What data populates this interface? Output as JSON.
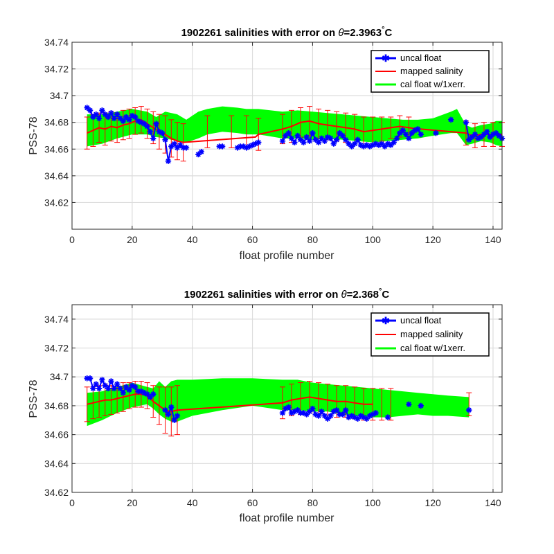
{
  "colors": {
    "uncal": "#0000ff",
    "mapped": "#ff0000",
    "errorbar": "#ff0000",
    "calband": "#00ff00",
    "grid": "#dcdcdc",
    "axes": "#262626"
  },
  "chart_data": [
    {
      "type": "line",
      "title_prefix": "1902261 salinities with error on ",
      "title_theta": "θ",
      "title_value": "=2.3963",
      "title_deg": "°",
      "title_unit": "C",
      "xlabel": "float profile number",
      "ylabel": "PSS-78",
      "xlim": [
        0,
        143
      ],
      "ylim": [
        34.6,
        34.74
      ],
      "xticks": [
        0,
        20,
        40,
        60,
        80,
        100,
        120,
        140
      ],
      "xtick_labels": [
        "0",
        "20",
        "40",
        "60",
        "80",
        "100",
        "120",
        "140"
      ],
      "yticks": [
        34.62,
        34.64,
        34.66,
        34.68,
        34.7,
        34.72,
        34.74
      ],
      "ytick_labels": [
        "34.62",
        "34.64",
        "34.66",
        "34.68",
        "34.7",
        "34.72",
        "34.74"
      ],
      "grid": true,
      "legend_position": "top-right",
      "legend": [
        "uncal float",
        "mapped salinity",
        "cal float w/1xerr."
      ],
      "series": [
        {
          "name": "uncal float",
          "x": [
            5,
            6,
            7,
            8,
            9,
            10,
            11,
            12,
            13,
            14,
            15,
            16,
            17,
            18,
            19,
            20,
            21,
            22,
            23,
            24,
            25,
            26,
            27,
            28,
            29,
            30,
            31,
            32,
            33,
            34,
            35,
            36,
            37,
            38,
            42,
            43,
            49,
            50,
            55,
            56,
            57,
            58,
            59,
            60,
            61,
            62,
            70,
            71,
            72,
            73,
            74,
            75,
            76,
            77,
            78,
            79,
            80,
            81,
            82,
            83,
            84,
            85,
            86,
            87,
            88,
            89,
            90,
            91,
            92,
            93,
            94,
            95,
            96,
            97,
            98,
            99,
            100,
            101,
            102,
            103,
            104,
            105,
            106,
            107,
            108,
            109,
            110,
            111,
            112,
            113,
            114,
            115,
            116,
            121,
            126,
            131,
            132,
            133,
            134,
            135,
            136,
            137,
            138,
            139,
            140,
            141,
            142,
            143
          ],
          "y": [
            34.691,
            34.689,
            34.684,
            34.686,
            34.683,
            34.689,
            34.686,
            34.684,
            34.687,
            34.683,
            34.686,
            34.683,
            34.681,
            34.684,
            34.682,
            34.685,
            34.684,
            34.681,
            34.68,
            34.679,
            34.677,
            34.673,
            34.668,
            34.679,
            34.673,
            34.672,
            34.667,
            34.651,
            34.662,
            34.664,
            34.661,
            34.663,
            34.661,
            34.661,
            34.656,
            34.658,
            34.662,
            34.662,
            34.661,
            34.662,
            34.662,
            34.661,
            34.662,
            34.663,
            34.664,
            34.665,
            34.666,
            34.67,
            34.672,
            34.668,
            34.665,
            34.67,
            34.667,
            34.665,
            34.669,
            34.666,
            34.672,
            34.667,
            34.665,
            34.668,
            34.666,
            34.669,
            34.668,
            34.664,
            34.667,
            34.672,
            34.67,
            34.667,
            34.664,
            34.662,
            34.664,
            34.667,
            34.663,
            34.662,
            34.663,
            34.662,
            34.663,
            34.664,
            34.663,
            34.664,
            34.662,
            34.664,
            34.663,
            34.665,
            34.668,
            34.672,
            34.674,
            34.671,
            34.668,
            34.672,
            34.674,
            34.675,
            34.671,
            34.672,
            34.682,
            34.68,
            34.667,
            34.669,
            34.671,
            34.668,
            34.669,
            34.671,
            34.673,
            34.669,
            34.671,
            34.672,
            34.67,
            34.668
          ]
        },
        {
          "name": "mapped salinity",
          "x": [
            5,
            7,
            9,
            11,
            13,
            15,
            17,
            19,
            21,
            23,
            25,
            27,
            29,
            31,
            33,
            35,
            37,
            61,
            62,
            70,
            73,
            76,
            79,
            82,
            85,
            88,
            91,
            94,
            97,
            100,
            103,
            106,
            109,
            112,
            115,
            116,
            131,
            133,
            136,
            139,
            142,
            143
          ],
          "y": [
            34.672,
            34.674,
            34.676,
            34.675,
            34.677,
            34.676,
            34.678,
            34.679,
            34.681,
            34.682,
            34.679,
            34.676,
            34.673,
            34.671,
            34.668,
            34.666,
            34.665,
            34.669,
            34.671,
            34.675,
            34.677,
            34.68,
            34.681,
            34.679,
            34.678,
            34.677,
            34.676,
            34.675,
            34.673,
            34.674,
            34.675,
            34.676,
            34.677,
            34.676,
            34.675,
            34.675,
            34.672,
            34.67,
            34.671,
            34.671,
            34.671,
            34.671
          ]
        }
      ],
      "errorbars": {
        "x": [
          5,
          7,
          9,
          11,
          13,
          15,
          17,
          19,
          21,
          23,
          25,
          27,
          29,
          31,
          33,
          35,
          37,
          45,
          53,
          58,
          62,
          70,
          73,
          76,
          79,
          82,
          85,
          88,
          91,
          94,
          97,
          100,
          103,
          106,
          109,
          112,
          131,
          134,
          137,
          140,
          143
        ],
        "center": [
          34.672,
          34.674,
          34.676,
          34.675,
          34.677,
          34.676,
          34.678,
          34.679,
          34.681,
          34.682,
          34.679,
          34.676,
          34.673,
          34.671,
          34.668,
          34.666,
          34.665,
          34.673,
          34.673,
          34.673,
          34.671,
          34.675,
          34.677,
          34.68,
          34.681,
          34.679,
          34.678,
          34.677,
          34.676,
          34.675,
          34.673,
          34.674,
          34.675,
          34.676,
          34.677,
          34.676,
          34.672,
          34.67,
          34.671,
          34.671,
          34.671
        ],
        "err": [
          0.012,
          0.012,
          0.011,
          0.012,
          0.011,
          0.011,
          0.011,
          0.011,
          0.01,
          0.01,
          0.011,
          0.012,
          0.013,
          0.014,
          0.014,
          0.014,
          0.014,
          0.012,
          0.012,
          0.012,
          0.012,
          0.011,
          0.012,
          0.011,
          0.011,
          0.011,
          0.011,
          0.011,
          0.011,
          0.011,
          0.011,
          0.01,
          0.009,
          0.008,
          0.008,
          0.008,
          0.009,
          0.009,
          0.009,
          0.009,
          0.009
        ]
      },
      "cal_band": {
        "x": [
          5,
          10,
          15,
          20,
          25,
          28,
          31,
          35,
          38,
          42,
          45,
          50,
          55,
          58,
          62,
          70,
          75,
          80,
          85,
          90,
          95,
          100,
          105,
          110,
          115,
          120,
          126,
          128,
          131,
          133,
          136,
          139,
          141,
          143
        ],
        "lower": [
          34.662,
          34.664,
          34.668,
          34.671,
          34.671,
          34.669,
          34.668,
          34.666,
          34.665,
          34.668,
          34.671,
          34.673,
          34.672,
          34.671,
          34.671,
          34.668,
          34.668,
          34.667,
          34.668,
          34.667,
          34.666,
          34.665,
          34.666,
          34.667,
          34.668,
          34.67,
          34.672,
          34.672,
          34.663,
          34.664,
          34.666,
          34.665,
          34.663,
          34.662
        ],
        "upper": [
          34.686,
          34.686,
          34.688,
          34.69,
          34.688,
          34.684,
          34.688,
          34.686,
          34.682,
          34.688,
          34.69,
          34.692,
          34.691,
          34.69,
          34.69,
          34.688,
          34.689,
          34.688,
          34.687,
          34.686,
          34.685,
          34.684,
          34.683,
          34.682,
          34.682,
          34.683,
          34.688,
          34.69,
          34.678,
          34.676,
          34.678,
          34.679,
          34.681,
          34.681
        ]
      }
    },
    {
      "type": "line",
      "title_prefix": "1902261 salinities with error on ",
      "title_theta": "θ",
      "title_value": "=2.368",
      "title_deg": "°",
      "title_unit": "C",
      "xlabel": "float profile number",
      "ylabel": "PSS-78",
      "xlim": [
        0,
        143
      ],
      "ylim": [
        34.62,
        34.75
      ],
      "xticks": [
        0,
        20,
        40,
        60,
        80,
        100,
        120,
        140
      ],
      "xtick_labels": [
        "0",
        "20",
        "40",
        "60",
        "80",
        "100",
        "120",
        "140"
      ],
      "yticks": [
        34.62,
        34.64,
        34.66,
        34.68,
        34.7,
        34.72,
        34.74
      ],
      "ytick_labels": [
        "34.62",
        "34.64",
        "34.66",
        "34.68",
        "34.7",
        "34.72",
        "34.74"
      ],
      "grid": true,
      "legend_position": "top-right",
      "legend": [
        "uncal float",
        "mapped salinity",
        "cal float w/1xerr."
      ],
      "series": [
        {
          "name": "uncal float",
          "x": [
            5,
            6,
            7,
            8,
            9,
            10,
            11,
            12,
            13,
            14,
            15,
            16,
            17,
            18,
            19,
            20,
            21,
            22,
            23,
            24,
            25,
            26,
            27,
            31,
            32,
            33,
            34,
            35,
            70,
            71,
            72,
            73,
            74,
            75,
            76,
            77,
            78,
            79,
            80,
            81,
            82,
            83,
            84,
            85,
            86,
            87,
            88,
            89,
            90,
            91,
            92,
            93,
            94,
            95,
            96,
            97,
            98,
            99,
            100,
            101,
            105,
            112,
            116,
            132
          ],
          "y": [
            34.699,
            34.699,
            34.692,
            34.695,
            34.692,
            34.698,
            34.694,
            34.692,
            34.697,
            34.692,
            34.695,
            34.692,
            34.689,
            34.693,
            34.691,
            34.694,
            34.693,
            34.69,
            34.69,
            34.689,
            34.688,
            34.686,
            34.688,
            34.677,
            34.674,
            34.679,
            34.67,
            34.673,
            34.675,
            34.678,
            34.679,
            34.675,
            34.676,
            34.677,
            34.675,
            34.675,
            34.674,
            34.676,
            34.678,
            34.674,
            34.673,
            34.676,
            34.673,
            34.671,
            34.673,
            34.676,
            34.677,
            34.674,
            34.674,
            34.677,
            34.672,
            34.673,
            34.672,
            34.671,
            34.673,
            34.672,
            34.671,
            34.673,
            34.674,
            34.675,
            34.672,
            34.681,
            34.68,
            34.677
          ]
        },
        {
          "name": "mapped salinity",
          "x": [
            5,
            7,
            9,
            11,
            13,
            15,
            17,
            19,
            21,
            23,
            25,
            27,
            29,
            31,
            33,
            35,
            70,
            73,
            76,
            79,
            82,
            85,
            88,
            91,
            94,
            97,
            100
          ],
          "y": [
            34.681,
            34.682,
            34.683,
            34.684,
            34.684,
            34.685,
            34.686,
            34.687,
            34.688,
            34.688,
            34.687,
            34.683,
            34.68,
            34.677,
            34.676,
            34.677,
            34.682,
            34.684,
            34.685,
            34.686,
            34.685,
            34.684,
            34.683,
            34.683,
            34.682,
            34.681,
            34.681
          ]
        }
      ],
      "errorbars": {
        "x": [
          5,
          7,
          9,
          11,
          13,
          15,
          17,
          19,
          21,
          23,
          25,
          27,
          29,
          31,
          33,
          35,
          70,
          73,
          76,
          79,
          82,
          85,
          88,
          91,
          94,
          97,
          100,
          103,
          106,
          132
        ],
        "center": [
          34.681,
          34.682,
          34.683,
          34.684,
          34.684,
          34.685,
          34.686,
          34.687,
          34.688,
          34.688,
          34.687,
          34.683,
          34.68,
          34.677,
          34.676,
          34.677,
          34.682,
          34.684,
          34.685,
          34.686,
          34.685,
          34.684,
          34.683,
          34.683,
          34.682,
          34.681,
          34.681,
          34.681,
          34.681,
          34.681
        ],
        "err": [
          0.012,
          0.011,
          0.011,
          0.011,
          0.01,
          0.01,
          0.01,
          0.009,
          0.009,
          0.009,
          0.009,
          0.011,
          0.013,
          0.016,
          0.017,
          0.017,
          0.011,
          0.011,
          0.011,
          0.011,
          0.011,
          0.011,
          0.011,
          0.011,
          0.011,
          0.011,
          0.011,
          0.011,
          0.011,
          0.008
        ]
      },
      "cal_band": {
        "x": [
          5,
          10,
          15,
          20,
          25,
          27,
          29,
          31,
          33,
          35,
          40,
          50,
          60,
          70,
          75,
          80,
          85,
          90,
          95,
          100,
          105,
          110,
          115,
          120,
          125,
          132
        ],
        "lower": [
          34.666,
          34.67,
          34.675,
          34.679,
          34.681,
          34.678,
          34.674,
          34.671,
          34.669,
          34.669,
          34.673,
          34.677,
          34.68,
          34.677,
          34.677,
          34.676,
          34.676,
          34.674,
          34.673,
          34.672,
          34.672,
          34.673,
          34.674,
          34.673,
          34.673,
          34.672
        ],
        "upper": [
          34.689,
          34.69,
          34.693,
          34.696,
          34.693,
          34.692,
          34.697,
          34.693,
          34.697,
          34.698,
          34.698,
          34.699,
          34.699,
          34.698,
          34.698,
          34.696,
          34.695,
          34.694,
          34.693,
          34.692,
          34.691,
          34.69,
          34.689,
          34.688,
          34.687,
          34.686
        ]
      }
    }
  ]
}
